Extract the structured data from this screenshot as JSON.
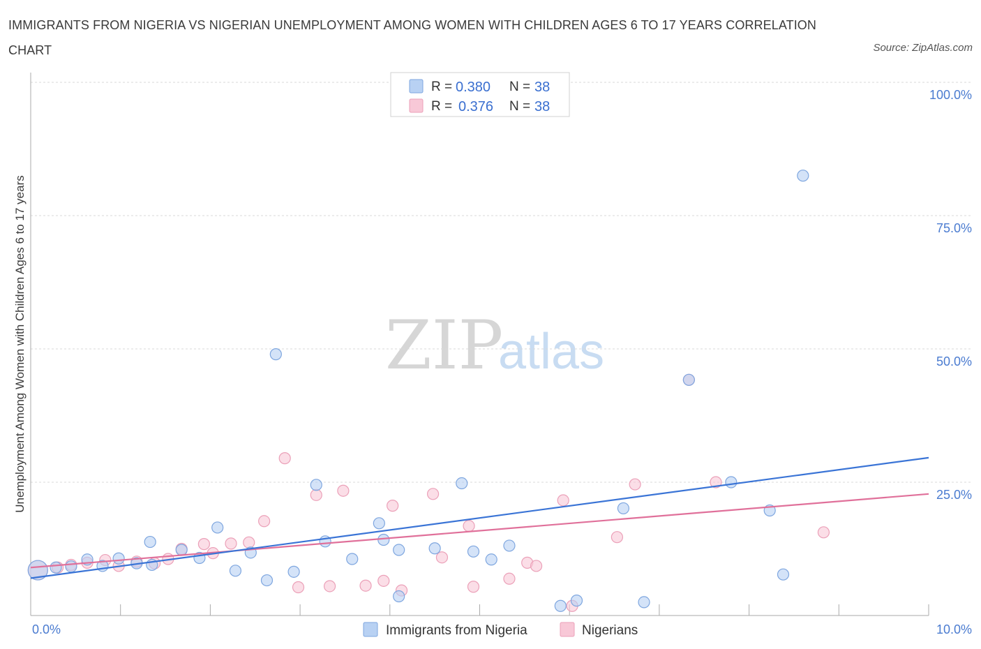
{
  "header": {
    "title": "IMMIGRANTS FROM NIGERIA VS NIGERIAN UNEMPLOYMENT AMONG WOMEN WITH CHILDREN AGES 6 TO 17 YEARS CORRELATION CHART",
    "source": "Source: ZipAtlas.com"
  },
  "watermark": {
    "zip": "ZIP",
    "atlas": "atlas"
  },
  "legend_top": {
    "rows": [
      {
        "r_label": "R = ",
        "r_value": "0.380",
        "n_label": "N = ",
        "n_value": "38"
      },
      {
        "r_label": "R = ",
        "r_value": "0.376",
        "n_label": "N = ",
        "n_value": "38"
      }
    ]
  },
  "colors": {
    "blue_fill": "#b8d1f3",
    "blue_stroke": "#7ea6df",
    "blue_line": "#3a74d6",
    "pink_fill": "#f8c8d7",
    "pink_stroke": "#eba0b8",
    "pink_line": "#e0709a",
    "grid": "#d8d8d8",
    "tick_label": "#4a7bd0"
  },
  "chart_data": {
    "type": "scatter",
    "title": "IMMIGRANTS FROM NIGERIA VS NIGERIAN UNEMPLOYMENT AMONG WOMEN WITH CHILDREN AGES 6 TO 17 YEARS CORRELATION CHART",
    "xlabel": "",
    "ylabel": "Unemployment Among Women with Children Ages 6 to 17 years",
    "xlim": [
      0,
      10
    ],
    "ylim": [
      0,
      100
    ],
    "x_tick_labels": [
      "0.0%",
      "10.0%"
    ],
    "y_tick_labels": [
      "25.0%",
      "50.0%",
      "75.0%",
      "100.0%"
    ],
    "y_ticks": [
      25,
      50,
      75,
      100
    ],
    "grid": true,
    "legend_position": "top-center and bottom",
    "series": [
      {
        "name": "Immigrants from Nigeria",
        "color": "#b8d1f3",
        "trend": {
          "x": [
            0,
            10
          ],
          "y": [
            7.0,
            29.6
          ]
        },
        "points": [
          [
            0.08,
            8.5
          ],
          [
            0.28,
            9.0
          ],
          [
            0.45,
            9.2
          ],
          [
            0.63,
            10.5
          ],
          [
            0.8,
            9.3
          ],
          [
            0.98,
            10.7
          ],
          [
            1.18,
            9.8
          ],
          [
            1.35,
            9.5
          ],
          [
            1.33,
            13.8
          ],
          [
            1.68,
            12.3
          ],
          [
            1.88,
            10.8
          ],
          [
            2.08,
            16.5
          ],
          [
            2.28,
            8.4
          ],
          [
            2.45,
            11.8
          ],
          [
            2.63,
            6.6
          ],
          [
            2.73,
            49.0
          ],
          [
            2.93,
            8.2
          ],
          [
            3.18,
            24.5
          ],
          [
            3.28,
            13.9
          ],
          [
            3.58,
            10.6
          ],
          [
            3.88,
            17.3
          ],
          [
            3.93,
            14.2
          ],
          [
            4.1,
            12.3
          ],
          [
            4.1,
            3.6
          ],
          [
            4.5,
            12.6
          ],
          [
            4.8,
            24.8
          ],
          [
            4.93,
            12.0
          ],
          [
            5.13,
            10.5
          ],
          [
            5.33,
            13.1
          ],
          [
            5.9,
            1.8
          ],
          [
            6.08,
            2.8
          ],
          [
            6.6,
            20.1
          ],
          [
            6.83,
            2.5
          ],
          [
            7.33,
            44.2
          ],
          [
            7.8,
            25.0
          ],
          [
            8.23,
            19.7
          ],
          [
            8.38,
            7.7
          ],
          [
            8.6,
            82.5
          ]
        ]
      },
      {
        "name": "Nigerians",
        "color": "#f8c8d7",
        "trend": {
          "x": [
            0,
            10
          ],
          "y": [
            9.0,
            22.8
          ]
        },
        "points": [
          [
            0.08,
            8.5
          ],
          [
            0.3,
            9.0
          ],
          [
            0.45,
            9.5
          ],
          [
            0.63,
            9.9
          ],
          [
            0.83,
            10.4
          ],
          [
            0.98,
            9.3
          ],
          [
            1.18,
            10.1
          ],
          [
            1.38,
            9.8
          ],
          [
            1.53,
            10.6
          ],
          [
            1.68,
            12.5
          ],
          [
            1.93,
            13.4
          ],
          [
            2.03,
            11.7
          ],
          [
            2.23,
            13.5
          ],
          [
            2.43,
            13.7
          ],
          [
            2.6,
            17.7
          ],
          [
            2.83,
            29.5
          ],
          [
            2.98,
            5.3
          ],
          [
            3.18,
            22.6
          ],
          [
            3.33,
            5.5
          ],
          [
            3.48,
            23.4
          ],
          [
            3.73,
            5.6
          ],
          [
            3.93,
            6.5
          ],
          [
            4.03,
            20.6
          ],
          [
            4.13,
            4.7
          ],
          [
            4.48,
            22.8
          ],
          [
            4.58,
            10.9
          ],
          [
            4.88,
            16.8
          ],
          [
            4.93,
            5.4
          ],
          [
            5.33,
            6.9
          ],
          [
            5.53,
            9.9
          ],
          [
            5.63,
            9.3
          ],
          [
            5.93,
            21.6
          ],
          [
            6.03,
            1.8
          ],
          [
            6.53,
            14.7
          ],
          [
            6.73,
            24.6
          ],
          [
            7.33,
            44.2
          ],
          [
            7.63,
            25.0
          ],
          [
            8.83,
            15.6
          ]
        ]
      }
    ]
  },
  "legend_bottom": {
    "items": [
      "Immigrants from Nigeria",
      "Nigerians"
    ]
  }
}
